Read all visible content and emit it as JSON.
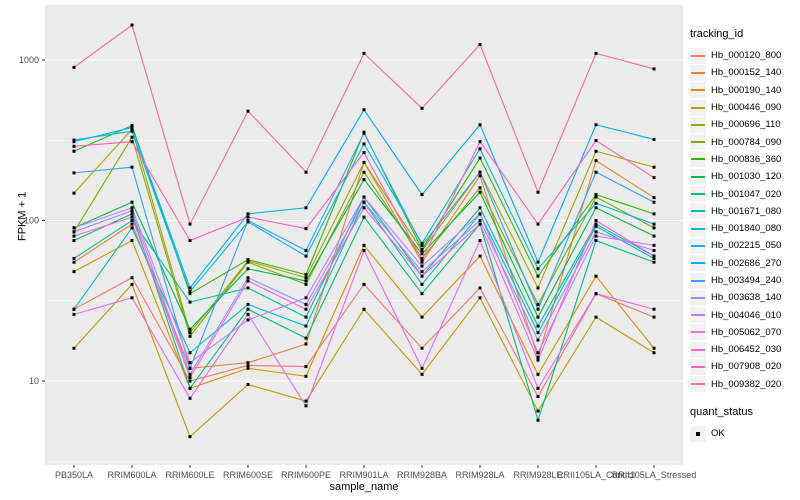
{
  "chart_data": {
    "type": "line",
    "title": "",
    "xlabel": "sample_name",
    "ylabel": "FPKM + 1",
    "y_scale": "log10",
    "y_ticks": [
      10,
      100,
      1000
    ],
    "y_minor_ticks": [
      3.162,
      31.62,
      316.2
    ],
    "ylim": [
      3.1,
      2100
    ],
    "grid": true,
    "panel_bg": "#EBEBEB",
    "grid_color": "#FFFFFF",
    "tick_label_color": "#4D4D4D",
    "point_color": "#000000",
    "legend_position": "right",
    "legend_title": "tracking_id",
    "legend2_title": "quant_status",
    "legend2_items": [
      "OK"
    ],
    "x_categories": [
      "PB350LA",
      "RRIM600LA",
      "RRIM600LE",
      "RRIM600SE",
      "RRIM600PE",
      "RRIM901LA",
      "RRIM928BA",
      "RRIM928LA",
      "RRIM928LE",
      "RRII105LA_Control",
      "RRII105LA_Stressed"
    ],
    "series": [
      {
        "name": "Hb_000120_800",
        "color": "#F8766D",
        "values": [
          28,
          44,
          10,
          12.5,
          12.3,
          40,
          16,
          38,
          8,
          35,
          25
        ]
      },
      {
        "name": "Hb_000152_140",
        "color": "#EA8331",
        "values": [
          55,
          95,
          12,
          13,
          17,
          230,
          55,
          190,
          14,
          236,
          139
        ]
      },
      {
        "name": "Hb_000190_140",
        "color": "#D89000",
        "values": [
          48,
          75,
          9,
          12,
          10.7,
          70,
          25,
          60,
          11,
          45,
          16
        ]
      },
      {
        "name": "Hb_000446_090",
        "color": "#C09B00",
        "values": [
          16,
          40,
          4.5,
          9.5,
          7.5,
          28,
          11,
          33,
          6.5,
          25,
          15
        ]
      },
      {
        "name": "Hb_000696_110",
        "color": "#A3A500",
        "values": [
          148,
          370,
          20,
          56,
          44,
          230,
          65,
          200,
          38,
          270,
          215
        ]
      },
      {
        "name": "Hb_000784_090",
        "color": "#7CAE00",
        "values": [
          85,
          330,
          19,
          55,
          40,
          200,
          58,
          160,
          30,
          140,
          90
        ]
      },
      {
        "name": "Hb_000836_360",
        "color": "#39B600",
        "values": [
          270,
          390,
          35,
          57,
          46,
          355,
          66,
          245,
          45,
          145,
          110
        ]
      },
      {
        "name": "Hb_001030_120",
        "color": "#00BB4E",
        "values": [
          90,
          130,
          21,
          50,
          42,
          180,
          62,
          150,
          25,
          120,
          80
        ]
      },
      {
        "name": "Hb_001047_020",
        "color": "#00BF7D",
        "values": [
          75,
          110,
          9,
          28,
          18.5,
          105,
          35,
          95,
          5.7,
          75,
          55
        ]
      },
      {
        "name": "Hb_001671_080",
        "color": "#00C1A3",
        "values": [
          58,
          100,
          31,
          38,
          25,
          140,
          45,
          120,
          22,
          95,
          60
        ]
      },
      {
        "name": "Hb_001840_080",
        "color": "#00BFC4",
        "values": [
          28,
          90,
          15,
          30,
          22,
          130,
          40,
          110,
          20,
          92,
          58
        ]
      },
      {
        "name": "Hb_002215_050",
        "color": "#00BAE0",
        "values": [
          317,
          360,
          36,
          98,
          60,
          300,
          72,
          280,
          50,
          128,
          95
        ]
      },
      {
        "name": "Hb_002686_270",
        "color": "#00B0F6",
        "values": [
          310,
          380,
          38,
          110,
          120,
          490,
          145,
          395,
          55,
          395,
          320
        ]
      },
      {
        "name": "Hb_003494_240",
        "color": "#35A2FF",
        "values": [
          198,
          215,
          12,
          100,
          65,
          350,
          70,
          200,
          28,
          200,
          130
        ]
      },
      {
        "name": "Hb_003638_140",
        "color": "#9590FF",
        "values": [
          85,
          115,
          11,
          44,
          30,
          130,
          48,
          100,
          18,
          85,
          65
        ]
      },
      {
        "name": "Hb_004046_010",
        "color": "#C77CFF",
        "values": [
          90,
          120,
          13,
          24,
          33,
          140,
          52,
          110,
          15,
          80,
          70
        ]
      },
      {
        "name": "Hb_005062_070",
        "color": "#E76BF3",
        "values": [
          26,
          33,
          7.8,
          26,
          7,
          65,
          12,
          75,
          9,
          35,
          28
        ]
      },
      {
        "name": "Hb_006452_030",
        "color": "#FA62DB",
        "values": [
          80,
          105,
          10.5,
          42,
          28,
          120,
          45,
          95,
          13.5,
          100,
          60
        ]
      },
      {
        "name": "Hb_007908_020",
        "color": "#FF62BC",
        "values": [
          290,
          310,
          75,
          105,
          89,
          265,
          57,
          310,
          95,
          315,
          185
        ]
      },
      {
        "name": "Hb_009382_020",
        "color": "#FF6A98",
        "values": [
          900,
          1650,
          95,
          480,
          200,
          1100,
          500,
          1250,
          150,
          1100,
          880
        ]
      }
    ]
  }
}
